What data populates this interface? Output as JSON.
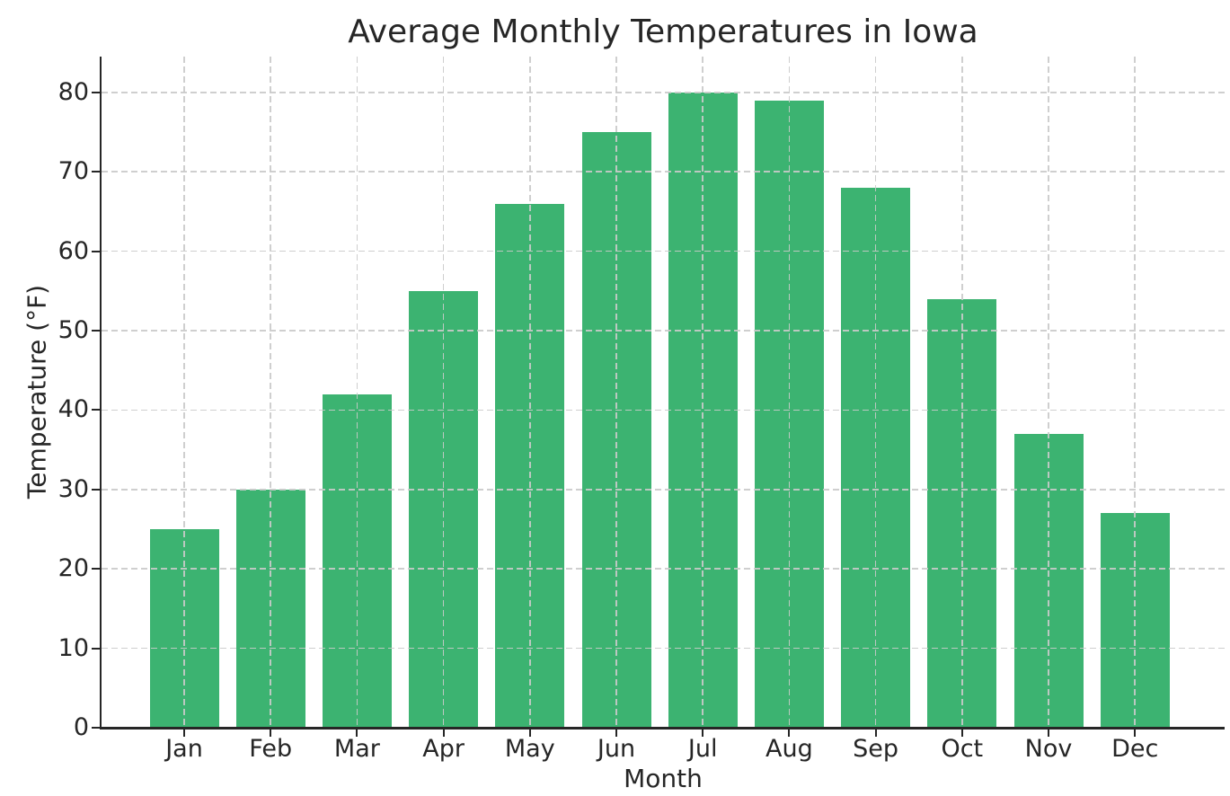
{
  "chart_data": {
    "type": "bar",
    "title": "Average Monthly Temperatures in Iowa",
    "xlabel": "Month",
    "ylabel": "Temperature (°F)",
    "categories": [
      "Jan",
      "Feb",
      "Mar",
      "Apr",
      "May",
      "Jun",
      "Jul",
      "Aug",
      "Sep",
      "Oct",
      "Nov",
      "Dec"
    ],
    "values": [
      25,
      30,
      42,
      55,
      66,
      75,
      80,
      79,
      68,
      54,
      37,
      27
    ],
    "yticks": [
      0,
      10,
      20,
      30,
      40,
      50,
      60,
      70,
      80
    ],
    "ylim": [
      0,
      84.5
    ],
    "grid": {
      "visible": true,
      "style": "dashed",
      "axes": "both",
      "over_bars": true
    },
    "legend": "none",
    "colors": {
      "bar": "#3cb371",
      "grid": "#cacaca",
      "axis": "#262626",
      "text": "#262626",
      "background": "#ffffff"
    }
  }
}
